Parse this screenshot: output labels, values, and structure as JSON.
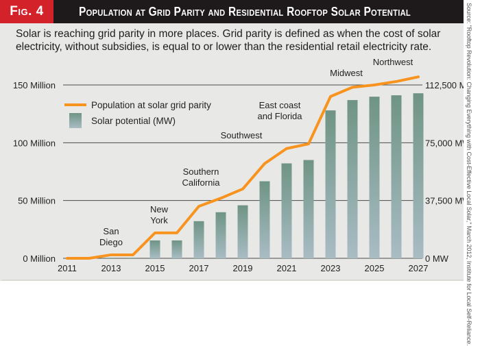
{
  "figure": {
    "label": "Fig. 4",
    "title": "Population at Grid Parity and Residential Rooftop Solar Potential",
    "subtitle": "Solar is reaching grid parity in more places. Grid parity is defined as when the cost of solar electricity, without subsidies, is equal to or lower than the residential retail electricity rate.",
    "source": "Source: \"Rooftop Revolution: Changing Everything with Cost-Effective Local Solar,\" March 2012, Institute for Local Self-Reliance.",
    "colors": {
      "header_bg": "#1e1a1b",
      "fig_label_bg": "#d3222a",
      "line": "#f7931e",
      "bar_top": "#6f9485",
      "bar_bottom": "#a9bcc4",
      "panel_bg": "#e8e9e6"
    }
  },
  "chart_data": {
    "type": "bar",
    "title": "Population at Grid Parity and Residential Rooftop Solar Potential",
    "xlabel": "",
    "ylabel": "Population",
    "y2label": "Solar potential (MW)",
    "categories": [
      "2011",
      "2012",
      "2013",
      "2014",
      "2015",
      "2016",
      "2017",
      "2018",
      "2019",
      "2020",
      "2021",
      "2022",
      "2023",
      "2024",
      "2025",
      "2026",
      "2027"
    ],
    "x_tick_labels": [
      "2011",
      "2013",
      "2015",
      "2017",
      "2019",
      "2021",
      "2023",
      "2025",
      "2027"
    ],
    "ylim": [
      0,
      150000000
    ],
    "y2lim": [
      0,
      112500
    ],
    "y_tick_labels": [
      "0 Million",
      "50 Million",
      "100 Million",
      "150 Million"
    ],
    "y_ticks": [
      0,
      50000000,
      100000000,
      150000000
    ],
    "y2_tick_labels": [
      "0 MW",
      "37,500 MW",
      "75,000 MW",
      "112,500 MW"
    ],
    "y2_ticks": [
      0,
      37500,
      75000,
      112500
    ],
    "grid": true,
    "legend_position": "top-left",
    "series": [
      {
        "name": "Population at solar grid parity",
        "type": "line",
        "axis": "left",
        "values": [
          0,
          0,
          3000000,
          3000000,
          22000000,
          22000000,
          45000000,
          52000000,
          60000000,
          82000000,
          95000000,
          99000000,
          140000000,
          148000000,
          150000000,
          153000000,
          157000000
        ]
      },
      {
        "name": "Solar potential (MW)",
        "type": "bar",
        "axis": "right",
        "values": [
          0,
          0,
          450,
          450,
          11600,
          11600,
          24100,
          29900,
          34400,
          50000,
          61600,
          63800,
          96000,
          102700,
          104900,
          105800,
          107100
        ]
      }
    ],
    "annotations": [
      {
        "text": "San Diego",
        "year": "2013"
      },
      {
        "text": "New York",
        "year": "2015"
      },
      {
        "text": "Southern California",
        "year": "2017"
      },
      {
        "text": "Southwest",
        "year": "2020"
      },
      {
        "text": "East coast and Florida",
        "year": "2022"
      },
      {
        "text": "Midwest",
        "year": "2023"
      },
      {
        "text": "Northwest",
        "year": "2026"
      }
    ]
  }
}
